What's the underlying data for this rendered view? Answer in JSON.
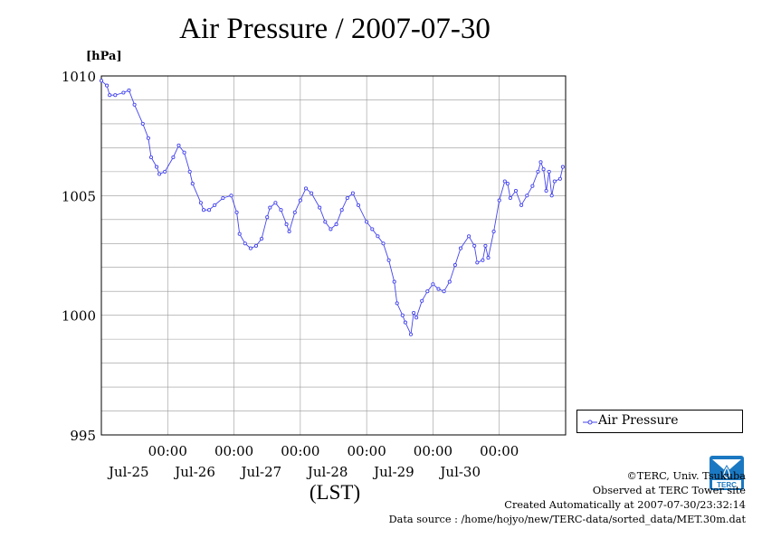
{
  "chart_data": {
    "type": "line",
    "title": "Air Pressure / 2007-07-30",
    "ylabel": "[hPa]",
    "xlabel": "(LST)",
    "ylim": [
      995,
      1010
    ],
    "yticks": [
      995,
      1000,
      1005,
      1010
    ],
    "y_minor_step": 1,
    "x_start": "2007-07-24 00:00",
    "x_end": "2007-07-31 00:00",
    "xticks": [
      {
        "time": "2007-07-25 00:00",
        "label": "00:00",
        "date_label": "Jul-25"
      },
      {
        "time": "2007-07-26 00:00",
        "label": "00:00",
        "date_label": "Jul-26"
      },
      {
        "time": "2007-07-27 00:00",
        "label": "00:00",
        "date_label": "Jul-27"
      },
      {
        "time": "2007-07-28 00:00",
        "label": "00:00",
        "date_label": "Jul-28"
      },
      {
        "time": "2007-07-29 00:00",
        "label": "00:00",
        "date_label": "Jul-29"
      },
      {
        "time": "2007-07-30 00:00",
        "label": "00:00",
        "date_label": "Jul-30"
      }
    ],
    "grid": true,
    "legend_position": "bottom-right outside",
    "series": [
      {
        "name": "Air Pressure",
        "color": "#4444ee",
        "marker": "circle",
        "points": [
          [
            "2007-07-24 00:00",
            1009.8
          ],
          [
            "2007-07-24 02:00",
            1009.6
          ],
          [
            "2007-07-24 03:00",
            1009.2
          ],
          [
            "2007-07-24 05:00",
            1009.2
          ],
          [
            "2007-07-24 08:00",
            1009.3
          ],
          [
            "2007-07-24 10:00",
            1009.4
          ],
          [
            "2007-07-24 12:00",
            1008.8
          ],
          [
            "2007-07-24 15:00",
            1008.0
          ],
          [
            "2007-07-24 17:00",
            1007.4
          ],
          [
            "2007-07-24 18:00",
            1006.6
          ],
          [
            "2007-07-24 20:00",
            1006.2
          ],
          [
            "2007-07-24 21:00",
            1005.9
          ],
          [
            "2007-07-24 23:00",
            1006.0
          ],
          [
            "2007-07-25 02:00",
            1006.6
          ],
          [
            "2007-07-25 04:00",
            1007.1
          ],
          [
            "2007-07-25 06:00",
            1006.8
          ],
          [
            "2007-07-25 08:00",
            1006.0
          ],
          [
            "2007-07-25 09:00",
            1005.5
          ],
          [
            "2007-07-25 12:00",
            1004.7
          ],
          [
            "2007-07-25 13:00",
            1004.4
          ],
          [
            "2007-07-25 15:00",
            1004.4
          ],
          [
            "2007-07-25 17:00",
            1004.6
          ],
          [
            "2007-07-25 20:00",
            1004.9
          ],
          [
            "2007-07-25 23:00",
            1005.0
          ],
          [
            "2007-07-26 01:00",
            1004.3
          ],
          [
            "2007-07-26 02:00",
            1003.4
          ],
          [
            "2007-07-26 04:00",
            1003.0
          ],
          [
            "2007-07-26 06:00",
            1002.8
          ],
          [
            "2007-07-26 08:00",
            1002.9
          ],
          [
            "2007-07-26 10:00",
            1003.2
          ],
          [
            "2007-07-26 12:00",
            1004.1
          ],
          [
            "2007-07-26 13:00",
            1004.5
          ],
          [
            "2007-07-26 15:00",
            1004.7
          ],
          [
            "2007-07-26 17:00",
            1004.4
          ],
          [
            "2007-07-26 19:00",
            1003.8
          ],
          [
            "2007-07-26 20:00",
            1003.5
          ],
          [
            "2007-07-26 22:00",
            1004.3
          ],
          [
            "2007-07-27 00:00",
            1004.8
          ],
          [
            "2007-07-27 02:00",
            1005.3
          ],
          [
            "2007-07-27 04:00",
            1005.1
          ],
          [
            "2007-07-27 07:00",
            1004.5
          ],
          [
            "2007-07-27 09:00",
            1003.9
          ],
          [
            "2007-07-27 11:00",
            1003.6
          ],
          [
            "2007-07-27 13:00",
            1003.8
          ],
          [
            "2007-07-27 15:00",
            1004.4
          ],
          [
            "2007-07-27 17:00",
            1004.9
          ],
          [
            "2007-07-27 19:00",
            1005.1
          ],
          [
            "2007-07-27 21:00",
            1004.6
          ],
          [
            "2007-07-28 00:00",
            1003.9
          ],
          [
            "2007-07-28 02:00",
            1003.6
          ],
          [
            "2007-07-28 04:00",
            1003.3
          ],
          [
            "2007-07-28 06:00",
            1003.0
          ],
          [
            "2007-07-28 08:00",
            1002.3
          ],
          [
            "2007-07-28 10:00",
            1001.4
          ],
          [
            "2007-07-28 11:00",
            1000.5
          ],
          [
            "2007-07-28 13:00",
            1000.0
          ],
          [
            "2007-07-28 14:00",
            999.7
          ],
          [
            "2007-07-28 16:00",
            999.2
          ],
          [
            "2007-07-28 17:00",
            1000.1
          ],
          [
            "2007-07-28 18:00",
            999.9
          ],
          [
            "2007-07-28 20:00",
            1000.6
          ],
          [
            "2007-07-28 22:00",
            1001.0
          ],
          [
            "2007-07-29 00:00",
            1001.3
          ],
          [
            "2007-07-29 02:00",
            1001.1
          ],
          [
            "2007-07-29 04:00",
            1001.0
          ],
          [
            "2007-07-29 06:00",
            1001.4
          ],
          [
            "2007-07-29 08:00",
            1002.1
          ],
          [
            "2007-07-29 10:00",
            1002.8
          ],
          [
            "2007-07-29 13:00",
            1003.3
          ],
          [
            "2007-07-29 15:00",
            1002.9
          ],
          [
            "2007-07-29 16:00",
            1002.2
          ],
          [
            "2007-07-29 18:00",
            1002.3
          ],
          [
            "2007-07-29 19:00",
            1002.9
          ],
          [
            "2007-07-29 20:00",
            1002.4
          ],
          [
            "2007-07-29 22:00",
            1003.5
          ],
          [
            "2007-07-30 00:00",
            1004.8
          ],
          [
            "2007-07-30 02:00",
            1005.6
          ],
          [
            "2007-07-30 03:00",
            1005.5
          ],
          [
            "2007-07-30 04:00",
            1004.9
          ],
          [
            "2007-07-30 06:00",
            1005.2
          ],
          [
            "2007-07-30 08:00",
            1004.6
          ],
          [
            "2007-07-30 10:00",
            1005.0
          ],
          [
            "2007-07-30 12:00",
            1005.4
          ],
          [
            "2007-07-30 14:00",
            1006.0
          ],
          [
            "2007-07-30 15:00",
            1006.4
          ],
          [
            "2007-07-30 16:00",
            1006.1
          ],
          [
            "2007-07-30 17:00",
            1005.2
          ],
          [
            "2007-07-30 18:00",
            1006.0
          ],
          [
            "2007-07-30 19:00",
            1005.0
          ],
          [
            "2007-07-30 20:00",
            1005.6
          ],
          [
            "2007-07-30 22:00",
            1005.7
          ],
          [
            "2007-07-30 23:00",
            1006.2
          ]
        ]
      }
    ]
  },
  "legend": {
    "label": "Air Pressure"
  },
  "footer": {
    "copyright": "©TERC, Univ. Tsukuba",
    "observed": "Observed at TERC Tower site",
    "created": "Created Automatically at 2007-07-30/23:32:14",
    "source": "Data source : /home/hojyo/new/TERC-data/sorted_data/MET.30m.dat"
  },
  "logo": {
    "text": "TERC",
    "color": "#1a78c2"
  }
}
